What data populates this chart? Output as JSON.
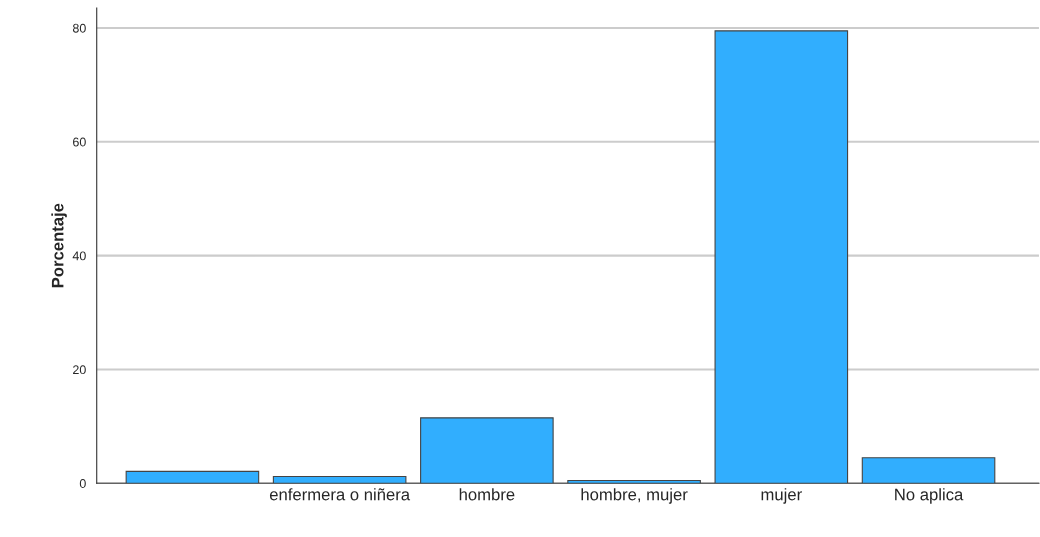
{
  "chart_data": {
    "type": "bar",
    "ylabel": "Porcentaje",
    "categories": [
      null,
      "enfermera o niñera",
      "hombre",
      "hombre, mujer",
      "mujer",
      "No aplica"
    ],
    "values": [
      2.1,
      1.2,
      11.5,
      0.5,
      79.5,
      4.5
    ],
    "color": "#31aefe",
    "ylim": [
      0,
      83.5
    ],
    "yticks": [
      0,
      20,
      40,
      60,
      80
    ],
    "grid": "y"
  }
}
